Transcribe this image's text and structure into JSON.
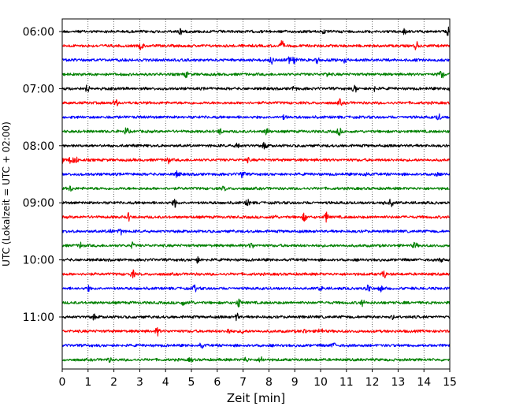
{
  "chart_data": {
    "type": "line",
    "title": "",
    "xlabel": "Zeit  [min]",
    "ylabel": "UTC (Lokalzeit = UTC + 02:00)",
    "xlim": [
      0,
      15
    ],
    "x_ticks": [
      "0",
      "1",
      "2",
      "3",
      "4",
      "5",
      "6",
      "7",
      "8",
      "9",
      "10",
      "11",
      "12",
      "13",
      "14",
      "15"
    ],
    "y_ticks": [
      "06:00",
      "07:00",
      "08:00",
      "09:00",
      "10:00",
      "11:00"
    ],
    "grid": "vertical dotted at each minute",
    "trace_interval_min": 15,
    "color_cycle": [
      "#000000",
      "#ff0000",
      "#0000ff",
      "#008000"
    ],
    "series": [
      {
        "start": "06:00",
        "color": "#000000"
      },
      {
        "start": "06:15",
        "color": "#ff0000"
      },
      {
        "start": "06:30",
        "color": "#0000ff"
      },
      {
        "start": "06:45",
        "color": "#008000"
      },
      {
        "start": "07:00",
        "color": "#000000"
      },
      {
        "start": "07:15",
        "color": "#ff0000"
      },
      {
        "start": "07:30",
        "color": "#0000ff"
      },
      {
        "start": "07:45",
        "color": "#008000"
      },
      {
        "start": "08:00",
        "color": "#000000"
      },
      {
        "start": "08:15",
        "color": "#ff0000"
      },
      {
        "start": "08:30",
        "color": "#0000ff"
      },
      {
        "start": "08:45",
        "color": "#008000"
      },
      {
        "start": "09:00",
        "color": "#000000"
      },
      {
        "start": "09:15",
        "color": "#ff0000"
      },
      {
        "start": "09:30",
        "color": "#0000ff"
      },
      {
        "start": "09:45",
        "color": "#008000"
      },
      {
        "start": "10:00",
        "color": "#000000"
      },
      {
        "start": "10:15",
        "color": "#ff0000"
      },
      {
        "start": "10:30",
        "color": "#0000ff"
      },
      {
        "start": "10:45",
        "color": "#008000"
      },
      {
        "start": "11:00",
        "color": "#000000"
      },
      {
        "start": "11:15",
        "color": "#ff0000"
      },
      {
        "start": "11:30",
        "color": "#0000ff"
      },
      {
        "start": "11:45",
        "color": "#008000"
      }
    ]
  }
}
